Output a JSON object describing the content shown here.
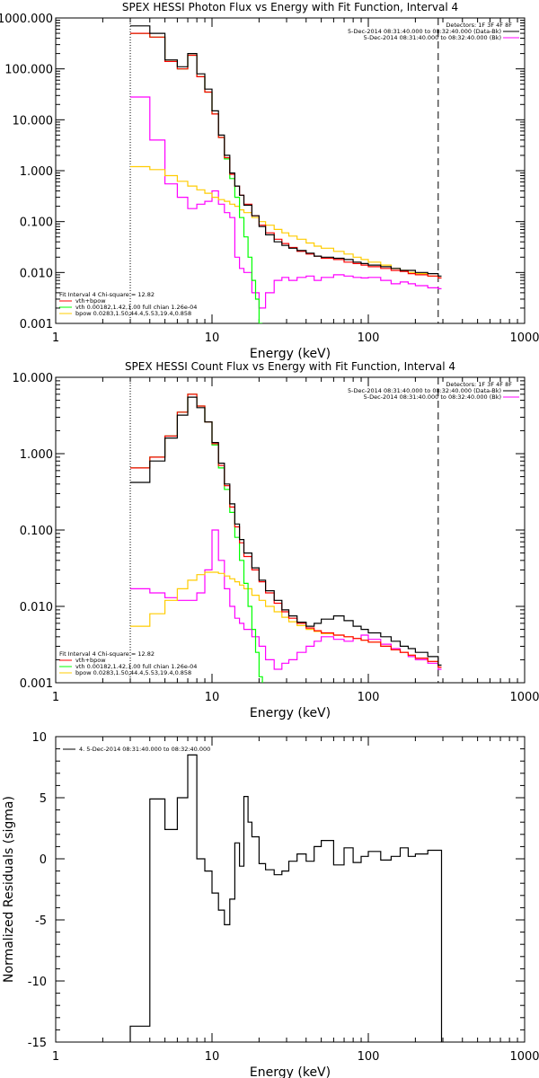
{
  "colors": {
    "data": "#000000",
    "total": "#ff0000",
    "vth": "#00ff00",
    "bpow": "#ffcc00",
    "bkg": "#ff00ff",
    "dot_orange": "#ff9900"
  },
  "chart_data": [
    {
      "type": "line",
      "title": "SPEX HESSI Photon Flux vs Energy with Fit Function, Interval 4",
      "xlabel": "Energy (keV)",
      "ylabel": "",
      "xscale": "log",
      "yscale": "log",
      "xlim": [
        1,
        1000
      ],
      "ylim": [
        0.001,
        1000
      ],
      "xticks": [
        "1",
        "10",
        "100",
        "1000"
      ],
      "yticks": [
        "0.001",
        "0.010",
        "0.100",
        "1.000",
        "10.000",
        "100.000",
        "1000.000"
      ],
      "legend_right": [
        "Detectors: 1F 3F 4F 8F",
        "5-Dec-2014 08:31:40.000 to 08:32:40.000 (Data-Bk)",
        "5-Dec-2014 08:31:40.000 to 08:32:40.000 (Bk)"
      ],
      "legend_left": [
        "Fit Interval 4   Chi-square = 12.82",
        "vth+bpow",
        "vth 0.00182,1.42,1.00  full chian 1.26e-04",
        "bpow 0.0283,1.50,44.4,5.53,19.4,0.858"
      ],
      "vlines": [
        {
          "x": 3.0,
          "style": "dotted"
        },
        {
          "x": 280,
          "style": "dashed"
        }
      ],
      "series": [
        {
          "name": "data",
          "x": [
            3,
            4,
            5,
            6,
            7,
            8,
            9,
            10,
            11,
            12,
            13,
            14,
            15,
            16,
            18,
            20,
            22,
            25,
            28,
            31,
            35,
            40,
            45,
            50,
            60,
            70,
            80,
            90,
            100,
            120,
            140,
            160,
            180,
            200,
            240,
            280
          ],
          "y": [
            700,
            500,
            150,
            110,
            200,
            80,
            40,
            15,
            5,
            2,
            0.9,
            0.5,
            0.33,
            0.21,
            0.13,
            0.08,
            0.055,
            0.04,
            0.034,
            0.03,
            0.027,
            0.024,
            0.021,
            0.02,
            0.019,
            0.018,
            0.016,
            0.015,
            0.014,
            0.013,
            0.012,
            0.011,
            0.011,
            0.01,
            0.0095,
            0.0085
          ]
        },
        {
          "name": "vth+bpow",
          "x": [
            3,
            4,
            5,
            6,
            7,
            8,
            9,
            10,
            11,
            12,
            13,
            14,
            15,
            16,
            18,
            20,
            22,
            25,
            28,
            31,
            35,
            40,
            45,
            50,
            60,
            70,
            80,
            90,
            100,
            120,
            140,
            160,
            180,
            200,
            240,
            280
          ],
          "y": [
            500,
            420,
            140,
            100,
            185,
            70,
            35,
            13,
            4.5,
            1.8,
            0.85,
            0.5,
            0.33,
            0.22,
            0.13,
            0.085,
            0.06,
            0.045,
            0.037,
            0.031,
            0.026,
            0.023,
            0.021,
            0.019,
            0.018,
            0.016,
            0.015,
            0.014,
            0.013,
            0.012,
            0.011,
            0.0105,
            0.0095,
            0.009,
            0.0085,
            0.0078
          ]
        },
        {
          "name": "vth",
          "x": [
            3,
            4,
            5,
            6,
            7,
            8,
            9,
            10,
            11,
            12,
            13,
            14,
            15,
            16,
            17,
            18,
            19,
            20
          ],
          "y": [
            500,
            420,
            140,
            100,
            185,
            70,
            35,
            13,
            4.5,
            1.7,
            0.7,
            0.3,
            0.12,
            0.05,
            0.02,
            0.007,
            0.003,
            0.001
          ]
        },
        {
          "name": "bpow",
          "x": [
            3,
            4,
            5,
            6,
            7,
            8,
            9,
            10,
            11,
            12,
            13,
            14,
            15,
            16,
            18,
            20,
            22,
            25,
            28,
            31,
            35,
            40,
            45,
            50,
            60,
            70,
            80,
            90,
            100,
            120,
            140,
            160,
            180,
            200,
            240,
            280
          ],
          "y": [
            1.2,
            1.05,
            0.8,
            0.62,
            0.5,
            0.42,
            0.36,
            0.3,
            0.27,
            0.25,
            0.22,
            0.2,
            0.17,
            0.15,
            0.12,
            0.1,
            0.085,
            0.07,
            0.06,
            0.052,
            0.045,
            0.038,
            0.033,
            0.03,
            0.026,
            0.023,
            0.02,
            0.018,
            0.016,
            0.014,
            0.012,
            0.011,
            0.01,
            0.0095,
            0.0085,
            0.0078
          ]
        },
        {
          "name": "bkg",
          "x": [
            3,
            4,
            5,
            6,
            7,
            8,
            9,
            10,
            11,
            12,
            13,
            14,
            15,
            16,
            18,
            20,
            22,
            25,
            28,
            31,
            35,
            40,
            45,
            50,
            60,
            70,
            80,
            90,
            100,
            120,
            140,
            160,
            180,
            200,
            240,
            280
          ],
          "y": [
            28,
            4,
            0.55,
            0.3,
            0.18,
            0.22,
            0.25,
            0.4,
            0.22,
            0.15,
            0.12,
            0.02,
            0.012,
            0.01,
            0.004,
            0.002,
            0.004,
            0.007,
            0.008,
            0.007,
            0.008,
            0.0085,
            0.007,
            0.008,
            0.009,
            0.0085,
            0.008,
            0.0078,
            0.008,
            0.007,
            0.006,
            0.0065,
            0.006,
            0.0055,
            0.005,
            0.0048
          ]
        }
      ]
    },
    {
      "type": "line",
      "title": "SPEX HESSI Count Flux vs Energy with Fit Function, Interval 4",
      "xlabel": "Energy (keV)",
      "ylabel": "",
      "xscale": "log",
      "yscale": "log",
      "xlim": [
        1,
        1000
      ],
      "ylim": [
        0.001,
        10
      ],
      "xticks": [
        "1",
        "10",
        "100",
        "1000"
      ],
      "yticks": [
        "0.001",
        "0.010",
        "0.100",
        "1.000",
        "10.000"
      ],
      "legend_right": [
        "Detectors: 1F 3F 4F 8F",
        "5-Dec-2014 08:31:40.000 to 08:32:40.000 (Data-Bk)",
        "5-Dec-2014 08:31:40.000 to 08:32:40.000 (Bk)"
      ],
      "legend_left": [
        "Fit Interval 4   Chi-square = 12.82",
        "vth+bpow",
        "vth 0.00182,1.42,1.00  full chian 1.26e-04",
        "bpow 0.0283,1.50,44.4,5.53,19.4,0.858"
      ],
      "vlines": [
        {
          "x": 3.0,
          "style": "dotted"
        },
        {
          "x": 280,
          "style": "dashed"
        }
      ],
      "series": [
        {
          "name": "data",
          "x": [
            3,
            4,
            5,
            6,
            7,
            8,
            9,
            10,
            11,
            12,
            13,
            14,
            15,
            16,
            18,
            20,
            22,
            25,
            28,
            31,
            35,
            40,
            45,
            50,
            60,
            70,
            80,
            90,
            100,
            120,
            140,
            160,
            180,
            200,
            240,
            280
          ],
          "y": [
            0.42,
            0.8,
            1.6,
            3.2,
            5.5,
            4,
            2.6,
            1.4,
            0.75,
            0.4,
            0.22,
            0.12,
            0.075,
            0.05,
            0.032,
            0.022,
            0.016,
            0.012,
            0.009,
            0.0075,
            0.0062,
            0.0055,
            0.006,
            0.0068,
            0.0075,
            0.0065,
            0.0055,
            0.005,
            0.0045,
            0.004,
            0.0035,
            0.003,
            0.0028,
            0.0025,
            0.0022,
            0.0017
          ]
        },
        {
          "name": "vth+bpow",
          "x": [
            3,
            4,
            5,
            6,
            7,
            8,
            9,
            10,
            11,
            12,
            13,
            14,
            15,
            16,
            18,
            20,
            22,
            25,
            28,
            31,
            35,
            40,
            45,
            50,
            60,
            70,
            80,
            90,
            100,
            120,
            140,
            160,
            180,
            200,
            240,
            280
          ],
          "y": [
            0.65,
            0.9,
            1.7,
            3.5,
            6,
            4.2,
            2.6,
            1.35,
            0.7,
            0.38,
            0.2,
            0.11,
            0.068,
            0.045,
            0.03,
            0.021,
            0.015,
            0.011,
            0.0085,
            0.007,
            0.006,
            0.0052,
            0.0048,
            0.0045,
            0.0042,
            0.004,
            0.0038,
            0.0036,
            0.0034,
            0.003,
            0.0027,
            0.0025,
            0.0023,
            0.0021,
            0.0019,
            0.0016
          ]
        },
        {
          "name": "vth",
          "x": [
            3,
            4,
            5,
            6,
            7,
            8,
            9,
            10,
            11,
            12,
            13,
            14,
            15,
            16,
            17,
            18,
            19,
            20,
            21
          ],
          "y": [
            0.65,
            0.9,
            1.7,
            3.5,
            6,
            4.2,
            2.6,
            1.3,
            0.65,
            0.34,
            0.17,
            0.08,
            0.04,
            0.02,
            0.01,
            0.005,
            0.0025,
            0.0012,
            0.0006
          ]
        },
        {
          "name": "bpow",
          "x": [
            3,
            4,
            5,
            6,
            7,
            8,
            9,
            10,
            11,
            12,
            13,
            14,
            15,
            16,
            18,
            20,
            22,
            25,
            28,
            31,
            35,
            40,
            45,
            50,
            60,
            70,
            80,
            90,
            100,
            120,
            140,
            160,
            180,
            200,
            240,
            280
          ],
          "y": [
            0.0055,
            0.008,
            0.012,
            0.017,
            0.022,
            0.026,
            0.028,
            0.028,
            0.027,
            0.025,
            0.023,
            0.021,
            0.019,
            0.017,
            0.014,
            0.012,
            0.01,
            0.0085,
            0.0072,
            0.0063,
            0.0056,
            0.005,
            0.0047,
            0.0044,
            0.0042,
            0.004,
            0.0038,
            0.0036,
            0.0034,
            0.003,
            0.0027,
            0.0025,
            0.0023,
            0.0021,
            0.0019,
            0.0016
          ]
        },
        {
          "name": "bkg",
          "x": [
            3,
            4,
            5,
            6,
            7,
            8,
            9,
            10,
            11,
            12,
            13,
            14,
            15,
            16,
            18,
            20,
            22,
            25,
            28,
            31,
            35,
            40,
            45,
            50,
            60,
            70,
            80,
            90,
            100,
            120,
            140,
            160,
            180,
            200,
            240,
            280
          ],
          "y": [
            0.017,
            0.015,
            0.013,
            0.012,
            0.012,
            0.015,
            0.03,
            0.1,
            0.04,
            0.017,
            0.01,
            0.007,
            0.006,
            0.005,
            0.004,
            0.003,
            0.002,
            0.0015,
            0.0018,
            0.002,
            0.0025,
            0.003,
            0.0035,
            0.004,
            0.0037,
            0.0035,
            0.0038,
            0.0042,
            0.0037,
            0.0032,
            0.0028,
            0.0025,
            0.0022,
            0.002,
            0.0018,
            0.0015
          ]
        }
      ]
    },
    {
      "type": "line",
      "title": "",
      "xlabel": "Energy (keV)",
      "ylabel": "Normalized Residuals (sigma)",
      "xscale": "log",
      "yscale": "linear",
      "xlim": [
        1,
        1000
      ],
      "ylim": [
        -15,
        10
      ],
      "xticks": [
        "1",
        "10",
        "100",
        "1000"
      ],
      "yticks": [
        "-15",
        "-10",
        "-5",
        "0",
        "5",
        "10"
      ],
      "legend_left": [
        "4.  5-Dec-2014 08:31:40.000 to 08:32:40.000"
      ],
      "series": [
        {
          "name": "residuals",
          "x": [
            3,
            4,
            5,
            6,
            7,
            8,
            9,
            10,
            11,
            12,
            13,
            14,
            15,
            16,
            17,
            18,
            20,
            22,
            25,
            28,
            31,
            35,
            40,
            45,
            50,
            60,
            70,
            80,
            90,
            100,
            120,
            140,
            160,
            180,
            200,
            240,
            280
          ],
          "y": [
            -13.7,
            4.9,
            2.4,
            5.0,
            8.5,
            0.0,
            -1.0,
            -2.8,
            -4.2,
            -5.4,
            -3.3,
            1.3,
            -0.6,
            5.1,
            3.0,
            1.8,
            -0.4,
            -0.9,
            -1.3,
            -1.0,
            -0.2,
            0.4,
            -0.2,
            1.0,
            1.5,
            -0.5,
            0.9,
            -0.3,
            0.2,
            0.6,
            -0.1,
            0.2,
            0.9,
            0.2,
            0.4,
            0.7,
            0.7
          ]
        }
      ]
    }
  ]
}
